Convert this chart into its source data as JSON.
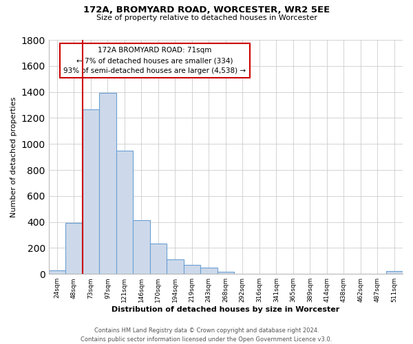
{
  "title": "172A, BROMYARD ROAD, WORCESTER, WR2 5EE",
  "subtitle": "Size of property relative to detached houses in Worcester",
  "xlabel": "Distribution of detached houses by size in Worcester",
  "ylabel": "Number of detached properties",
  "footer_line1": "Contains HM Land Registry data © Crown copyright and database right 2024.",
  "footer_line2": "Contains public sector information licensed under the Open Government Licence v3.0.",
  "bin_labels": [
    "24sqm",
    "48sqm",
    "73sqm",
    "97sqm",
    "121sqm",
    "146sqm",
    "170sqm",
    "194sqm",
    "219sqm",
    "243sqm",
    "268sqm",
    "292sqm",
    "316sqm",
    "341sqm",
    "365sqm",
    "389sqm",
    "414sqm",
    "438sqm",
    "462sqm",
    "487sqm",
    "511sqm"
  ],
  "bar_heights": [
    25,
    390,
    1265,
    1395,
    950,
    415,
    235,
    110,
    70,
    50,
    15,
    0,
    0,
    0,
    0,
    0,
    0,
    0,
    0,
    0,
    20
  ],
  "bar_color": "#cdd9ea",
  "bar_edge_color": "#6b9fd4",
  "ylim": [
    0,
    1800
  ],
  "yticks": [
    0,
    200,
    400,
    600,
    800,
    1000,
    1200,
    1400,
    1600,
    1800
  ],
  "annotation_title": "172A BROMYARD ROAD: 71sqm",
  "annotation_line1": "← 7% of detached houses are smaller (334)",
  "annotation_line2": "93% of semi-detached houses are larger (4,538) →",
  "annotation_box_color": "#ffffff",
  "annotation_box_edge": "#cc0000",
  "property_line_color": "#cc0000",
  "grid_color": "#cccccc",
  "plot_bg_color": "#ffffff",
  "fig_bg_color": "#ffffff"
}
